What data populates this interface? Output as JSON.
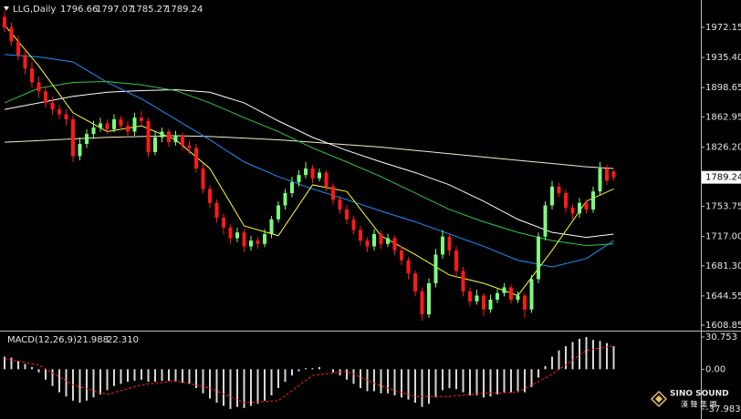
{
  "chart_data": [
    {
      "type": "candlestick",
      "title": "LLG,Daily",
      "open": [
        1985,
        1972,
        1955,
        1938,
        1922,
        1905,
        1894,
        1880,
        1872,
        1866,
        1860,
        1815,
        1830,
        1842,
        1850,
        1855,
        1848,
        1860,
        1852,
        1845,
        1862,
        1858,
        1820,
        1838,
        1845,
        1832,
        1840,
        1828,
        1825,
        1800,
        1775,
        1758,
        1740,
        1728,
        1715,
        1722,
        1705,
        1712,
        1708,
        1720,
        1738,
        1755,
        1770,
        1783,
        1792,
        1800,
        1788,
        1795,
        1778,
        1762,
        1750,
        1738,
        1725,
        1712,
        1705,
        1720,
        1708,
        1715,
        1700,
        1688,
        1672,
        1650,
        1622,
        1660,
        1695,
        1717,
        1700,
        1675,
        1650,
        1638,
        1645,
        1628,
        1640,
        1648,
        1655,
        1640,
        1645,
        1628,
        1665,
        1717,
        1755,
        1778,
        1770,
        1752,
        1745,
        1758,
        1750,
        1772,
        1800,
        1796.66
      ],
      "high": [
        1992,
        1978,
        1962,
        1945,
        1930,
        1912,
        1900,
        1888,
        1878,
        1872,
        1864,
        1838,
        1848,
        1858,
        1862,
        1860,
        1866,
        1864,
        1858,
        1868,
        1870,
        1862,
        1845,
        1850,
        1848,
        1846,
        1844,
        1834,
        1830,
        1806,
        1780,
        1762,
        1745,
        1732,
        1728,
        1726,
        1718,
        1716,
        1726,
        1742,
        1760,
        1775,
        1790,
        1798,
        1808,
        1804,
        1800,
        1798,
        1782,
        1766,
        1755,
        1742,
        1730,
        1716,
        1726,
        1724,
        1720,
        1718,
        1705,
        1692,
        1676,
        1655,
        1666,
        1702,
        1725,
        1720,
        1705,
        1680,
        1655,
        1652,
        1648,
        1646,
        1653,
        1660,
        1658,
        1650,
        1648,
        1670,
        1722,
        1760,
        1785,
        1782,
        1774,
        1756,
        1764,
        1762,
        1778,
        1808,
        1805,
        1797.07
      ],
      "low": [
        1966,
        1950,
        1932,
        1915,
        1898,
        1886,
        1874,
        1866,
        1860,
        1852,
        1808,
        1810,
        1825,
        1836,
        1845,
        1842,
        1844,
        1846,
        1838,
        1840,
        1852,
        1814,
        1816,
        1832,
        1826,
        1828,
        1822,
        1818,
        1795,
        1770,
        1752,
        1734,
        1720,
        1708,
        1710,
        1698,
        1700,
        1702,
        1704,
        1715,
        1734,
        1750,
        1765,
        1778,
        1788,
        1782,
        1784,
        1772,
        1756,
        1745,
        1732,
        1720,
        1706,
        1698,
        1700,
        1702,
        1704,
        1694,
        1682,
        1665,
        1644,
        1614,
        1618,
        1655,
        1690,
        1694,
        1668,
        1644,
        1632,
        1634,
        1620,
        1624,
        1636,
        1644,
        1635,
        1636,
        1618,
        1624,
        1660,
        1712,
        1750,
        1765,
        1746,
        1738,
        1740,
        1745,
        1746,
        1768,
        1780,
        1785.27
      ],
      "close": [
        1972,
        1955,
        1938,
        1922,
        1905,
        1894,
        1880,
        1872,
        1866,
        1860,
        1815,
        1830,
        1842,
        1850,
        1855,
        1848,
        1860,
        1852,
        1845,
        1862,
        1858,
        1820,
        1838,
        1845,
        1832,
        1840,
        1828,
        1825,
        1800,
        1775,
        1758,
        1740,
        1728,
        1715,
        1722,
        1705,
        1712,
        1708,
        1720,
        1738,
        1755,
        1770,
        1783,
        1792,
        1800,
        1788,
        1795,
        1778,
        1762,
        1750,
        1738,
        1725,
        1712,
        1705,
        1720,
        1708,
        1715,
        1700,
        1688,
        1672,
        1650,
        1622,
        1660,
        1695,
        1717,
        1700,
        1675,
        1650,
        1638,
        1645,
        1628,
        1640,
        1648,
        1655,
        1640,
        1645,
        1628,
        1665,
        1717,
        1755,
        1778,
        1770,
        1752,
        1745,
        1758,
        1750,
        1772,
        1800,
        1785,
        1789.24
      ],
      "up_color": "#7dfc7d",
      "down_color": "#ff1a1a",
      "lines": [
        {
          "color": "#f5f0c8",
          "x": [
            0,
            5,
            10,
            15,
            20,
            25,
            30,
            35,
            40,
            45,
            50,
            55,
            60,
            65,
            70,
            75,
            80,
            85,
            89
          ],
          "values": [
            1832,
            1834,
            1836,
            1838,
            1839,
            1840,
            1839,
            1837,
            1835,
            1832,
            1829,
            1826,
            1822,
            1818,
            1814,
            1810,
            1806,
            1802,
            1800
          ]
        },
        {
          "color": "#ffffff",
          "x": [
            0,
            5,
            10,
            15,
            20,
            25,
            30,
            35,
            40,
            45,
            50,
            55,
            60,
            65,
            70,
            75,
            80,
            85,
            89
          ],
          "values": [
            1872,
            1880,
            1888,
            1893,
            1895,
            1896,
            1893,
            1880,
            1858,
            1838,
            1822,
            1808,
            1795,
            1780,
            1760,
            1738,
            1722,
            1716,
            1720
          ]
        },
        {
          "color": "#2ecc40",
          "x": [
            0,
            5,
            10,
            15,
            20,
            25,
            30,
            35,
            40,
            45,
            50,
            55,
            60,
            65,
            70,
            75,
            80,
            85,
            89
          ],
          "values": [
            1880,
            1898,
            1905,
            1906,
            1902,
            1895,
            1880,
            1862,
            1845,
            1825,
            1808,
            1790,
            1770,
            1750,
            1735,
            1722,
            1712,
            1706,
            1708
          ]
        },
        {
          "color": "#1e90ff",
          "x": [
            0,
            5,
            10,
            15,
            20,
            25,
            30,
            35,
            40,
            45,
            50,
            55,
            60,
            65,
            70,
            75,
            80,
            85,
            89
          ],
          "values": [
            1939,
            1936,
            1930,
            1905,
            1885,
            1860,
            1835,
            1808,
            1790,
            1775,
            1762,
            1748,
            1735,
            1720,
            1705,
            1688,
            1680,
            1690,
            1712
          ]
        },
        {
          "color": "#ffff33",
          "x": [
            0,
            5,
            10,
            15,
            20,
            25,
            30,
            35,
            40,
            45,
            50,
            55,
            60,
            65,
            70,
            75,
            80,
            85,
            89
          ],
          "values": [
            1975,
            1925,
            1868,
            1845,
            1852,
            1835,
            1800,
            1730,
            1718,
            1780,
            1772,
            1718,
            1695,
            1670,
            1660,
            1645,
            1700,
            1760,
            1775
          ]
        }
      ],
      "ylim": [
        1603.3,
        2005.5
      ],
      "yticks": [
        1972.15,
        {
          "value": 1935.4,
          "label": "1935.40"
        },
        1898.65,
        1862.95,
        {
          "value": 1826.2,
          "label": "1826.20"
        },
        1753.75,
        {
          "value": 1717,
          "label": "1717.00"
        },
        {
          "value": 1681.3,
          "label": "1681.30"
        },
        1644.55,
        1608.85
      ]
    },
    {
      "type": "macd",
      "title": "MACD(12,26,9)",
      "header_values": [
        "21.988",
        "22.310"
      ],
      "values": [
        12,
        11,
        8,
        5,
        2,
        -3,
        -10,
        -16,
        -22,
        -26,
        -30,
        -32,
        -30,
        -27,
        -24,
        -20,
        -16,
        -14,
        -12,
        -11,
        -10,
        -12,
        -12,
        -11,
        -11,
        -12,
        -13,
        -14,
        -18,
        -23,
        -28,
        -32,
        -35,
        -37.983,
        -36,
        -37,
        -35,
        -33,
        -30,
        -25,
        -18,
        -12,
        -6,
        -2,
        1,
        1,
        2,
        0,
        -3,
        -6,
        -10,
        -14,
        -18,
        -21,
        -21,
        -23,
        -23,
        -25,
        -27,
        -29,
        -32,
        -36,
        -33,
        -27,
        -20,
        -18,
        -19,
        -22,
        -25,
        -25,
        -27,
        -26,
        -24,
        -22,
        -22,
        -21,
        -22,
        -17,
        -8,
        3,
        12,
        18,
        22,
        26,
        29,
        30.753,
        28,
        27,
        25,
        21.988
      ],
      "color": "#d8d8d8",
      "signal": {
        "color": "#ff2020",
        "x": [
          0,
          5,
          10,
          15,
          20,
          25,
          30,
          35,
          40,
          45,
          50,
          55,
          60,
          65,
          70,
          75,
          80,
          85,
          89
        ],
        "values": [
          10,
          4,
          -15,
          -24,
          -15,
          -11,
          -18,
          -32,
          -30,
          -6,
          -2,
          -16,
          -26,
          -26,
          -23,
          -22,
          -5,
          18,
          22.31
        ]
      },
      "ylim": [
        -45.8,
        35.1
      ],
      "yticks": [
        30.753,
        {
          "value": 0,
          "label": "0.00"
        },
        -37.983
      ]
    }
  ],
  "logo": {
    "name": "SINO SOUND",
    "chinese": "漢 聲 集 團"
  }
}
